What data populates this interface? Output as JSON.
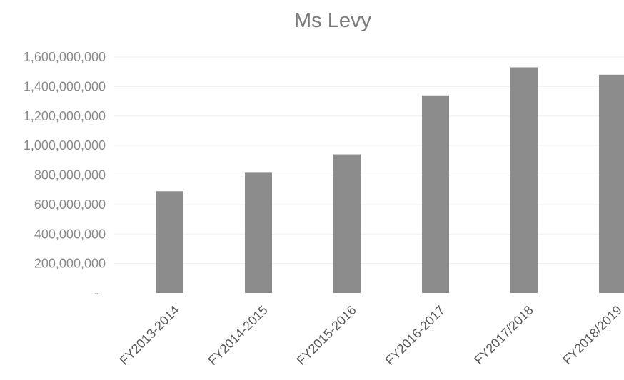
{
  "chart_data": {
    "type": "bar",
    "title": "Ms Levy",
    "xlabel": "",
    "ylabel": "",
    "categories": [
      "FY2013-2014",
      "FY2014-2015",
      "FY2015-2016",
      "FY2016-2017",
      "FY2017/2018",
      "FY2018/2019"
    ],
    "values": [
      690000000,
      820000000,
      940000000,
      1340000000,
      1530000000,
      1480000000
    ],
    "ylim": [
      0,
      1600000000
    ],
    "yticks": [
      0,
      200000000,
      400000000,
      600000000,
      800000000,
      1000000000,
      1200000000,
      1400000000,
      1600000000
    ],
    "ytick_labels": [
      "-",
      "200,000,000",
      "400,000,000",
      "600,000,000",
      "800,000,000",
      "1,000,000,000",
      "1,200,000,000",
      "1,400,000,000",
      "1,600,000,000"
    ],
    "grid": true,
    "legend": "none",
    "colors": {
      "bar": "#8c8c8c",
      "title": "#7b7b7b",
      "axis_text": "#8a8a8a",
      "category_text": "#5a5a5a",
      "grid": "#f0f0f0"
    }
  }
}
